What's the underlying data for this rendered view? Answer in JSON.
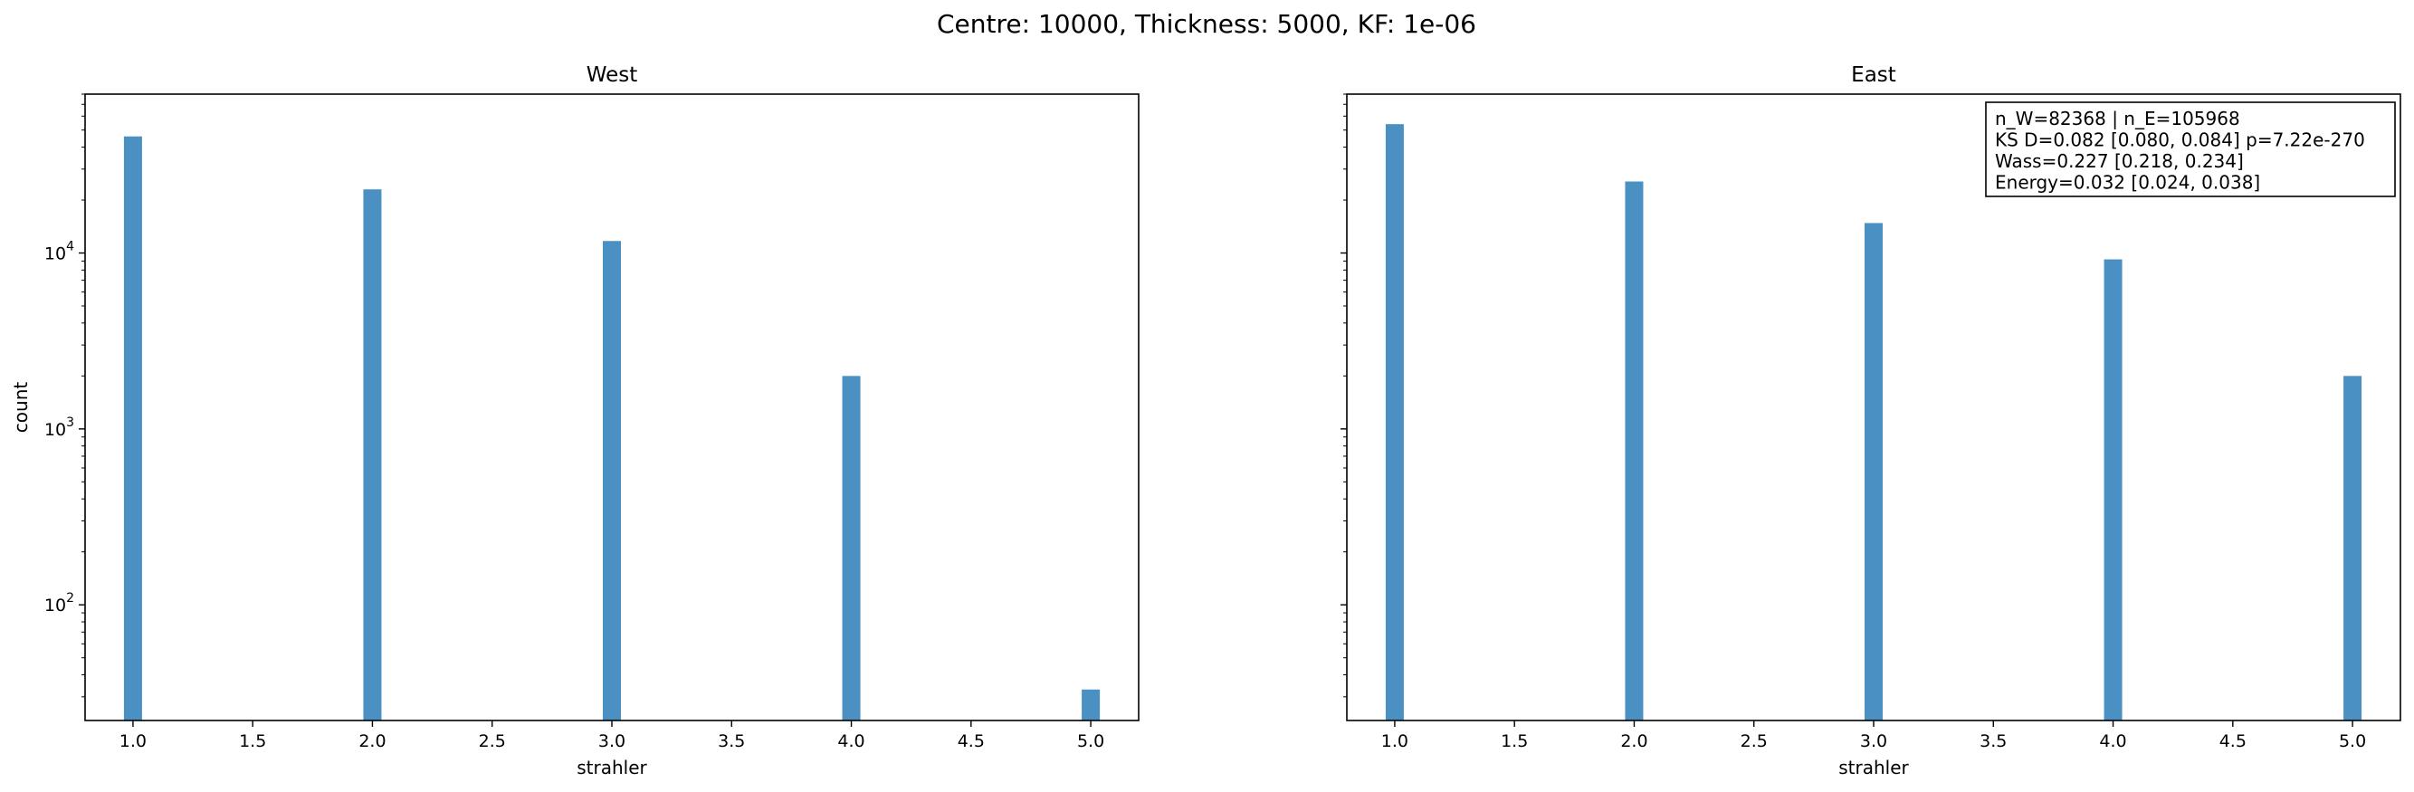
{
  "figure": {
    "suptitle": "Centre: 10000, Thickness: 5000, KF: 1e-06"
  },
  "chart_data": [
    {
      "type": "bar",
      "title": "West",
      "xlabel": "strahler",
      "ylabel": "count",
      "yscale": "log",
      "xlim": [
        0.8,
        5.2
      ],
      "ylim": [
        22,
        80000
      ],
      "x_ticks": [
        "1.0",
        "1.5",
        "2.0",
        "2.5",
        "3.0",
        "3.5",
        "4.0",
        "4.5",
        "5.0"
      ],
      "y_ticks": [
        {
          "base": "10",
          "exp": "2",
          "value": 100
        },
        {
          "base": "10",
          "exp": "3",
          "value": 1000
        },
        {
          "base": "10",
          "exp": "4",
          "value": 10000
        }
      ],
      "bar_color": "#4a90c2",
      "x": [
        1,
        2,
        3,
        4,
        5
      ],
      "values": [
        46000,
        23000,
        11700,
        2000,
        33
      ],
      "grid": false
    },
    {
      "type": "bar",
      "title": "East",
      "xlabel": "strahler",
      "ylabel": "",
      "yscale": "log",
      "xlim": [
        0.8,
        5.2
      ],
      "ylim": [
        22,
        80000
      ],
      "x_ticks": [
        "1.0",
        "1.5",
        "2.0",
        "2.5",
        "3.0",
        "3.5",
        "4.0",
        "4.5",
        "5.0"
      ],
      "y_ticks": [],
      "bar_color": "#4a90c2",
      "x": [
        1,
        2,
        3,
        4,
        5
      ],
      "values": [
        54000,
        25500,
        14800,
        9200,
        2000
      ],
      "grid": false,
      "annotation": [
        "n_W=82368 | n_E=105968",
        "KS D=0.082 [0.080, 0.084]  p=7.22e-270",
        "Wass=0.227 [0.218, 0.234]",
        "Energy=0.032 [0.024, 0.038]"
      ]
    }
  ]
}
